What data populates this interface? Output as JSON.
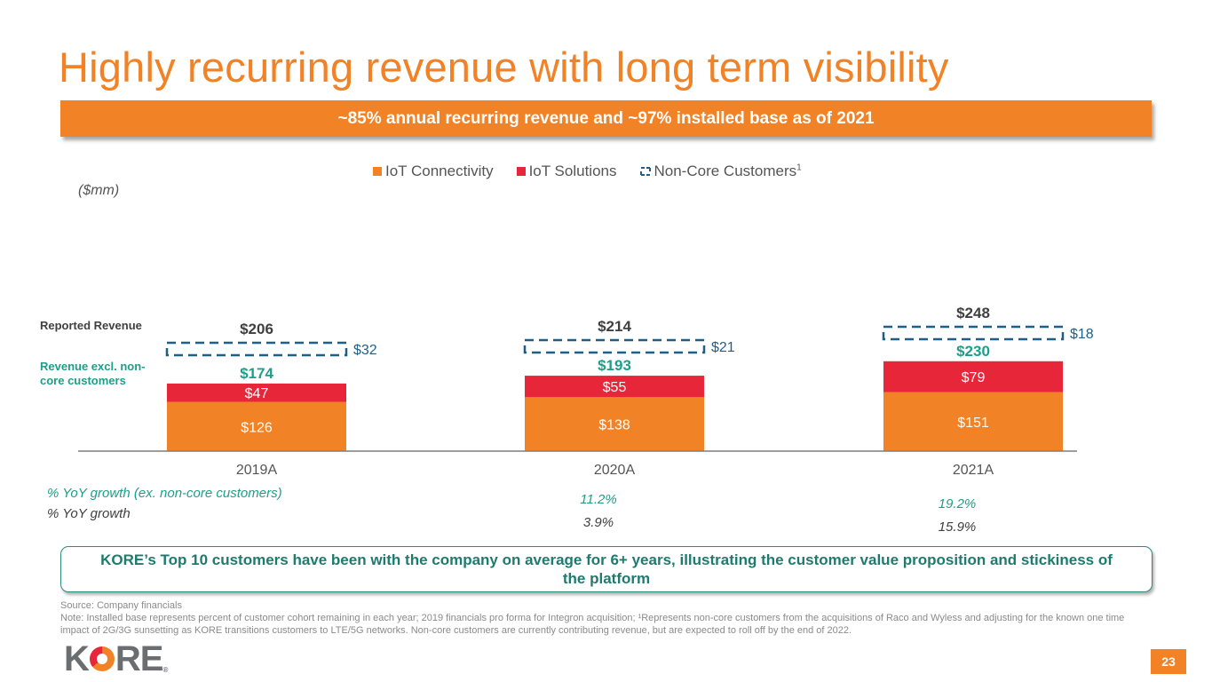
{
  "title": "Highly recurring revenue with long term visibility",
  "banner": "~85% annual recurring revenue and ~97% installed base as of 2021",
  "units": "($mm)",
  "side_labels": {
    "reported": "Reported Revenue",
    "excl_noncore_line1": "Revenue excl. non-",
    "excl_noncore_line2": "core customers"
  },
  "colors": {
    "orange": "#f28226",
    "red": "#e8263a",
    "noncore_dash": "#1f5f86",
    "teal": "#1e9e8a",
    "dark_text": "#404040",
    "axis": "#7f7f7f"
  },
  "chart_data": {
    "type": "bar",
    "stacked": true,
    "title": "",
    "xlabel": "",
    "ylabel": "",
    "units": "$mm",
    "categories": [
      "2019A",
      "2020A",
      "2021A"
    ],
    "series": [
      {
        "name": "IoT Connectivity",
        "values": [
          126,
          138,
          151
        ],
        "labels": [
          "$126",
          "$138",
          "$151"
        ],
        "color": "#f28226"
      },
      {
        "name": "IoT Solutions",
        "values": [
          47,
          55,
          79
        ],
        "labels": [
          "$47",
          "$55",
          "$79"
        ],
        "color": "#e8263a"
      },
      {
        "name": "Non-Core Customers",
        "superscript": "1",
        "values": [
          32,
          21,
          18
        ],
        "labels": [
          "$32",
          "$21",
          "$18"
        ],
        "style": "dashed-outline",
        "color": "#1f5f86"
      }
    ],
    "totals_excl_noncore": {
      "values": [
        174,
        193,
        230
      ],
      "labels": [
        "$174",
        "$193",
        "$230"
      ]
    },
    "totals_reported": {
      "values": [
        206,
        214,
        248
      ],
      "labels": [
        "$206",
        "$214",
        "$248"
      ]
    },
    "legend": {
      "position": "top-center",
      "entries": [
        "IoT Connectivity",
        "IoT Solutions",
        "Non-Core Customers"
      ],
      "superscript_last": "1"
    },
    "growth_rows": [
      {
        "label": "% YoY growth (ex. non-core customers)",
        "values": [
          "",
          "11.2%",
          "19.2%"
        ],
        "color": "#1e9e8a"
      },
      {
        "label": "% YoY growth",
        "values": [
          "",
          "3.9%",
          "15.9%"
        ],
        "color": "#404040"
      }
    ],
    "grid": false
  },
  "callout": "KORE’s Top 10 customers have been with the company on average for 6+ years, illustrating the customer value proposition and stickiness of the platform",
  "footnotes": {
    "source": "Source: Company financials",
    "note": "Note: Installed base represents percent of customer cohort remaining in each year; 2019 financials pro forma for Integron acquisition; ¹Represents non-core customers from the acquisitions of Raco and Wyless and adjusting for the known one time impact of 2G/3G sunsetting as KORE transitions customers to LTE/5G networks. Non-core customers are currently contributing revenue, but are expected to roll off by the end of 2022."
  },
  "logo": {
    "letters": [
      "K",
      "R",
      "E"
    ],
    "registered": "®"
  },
  "page_number": "23"
}
